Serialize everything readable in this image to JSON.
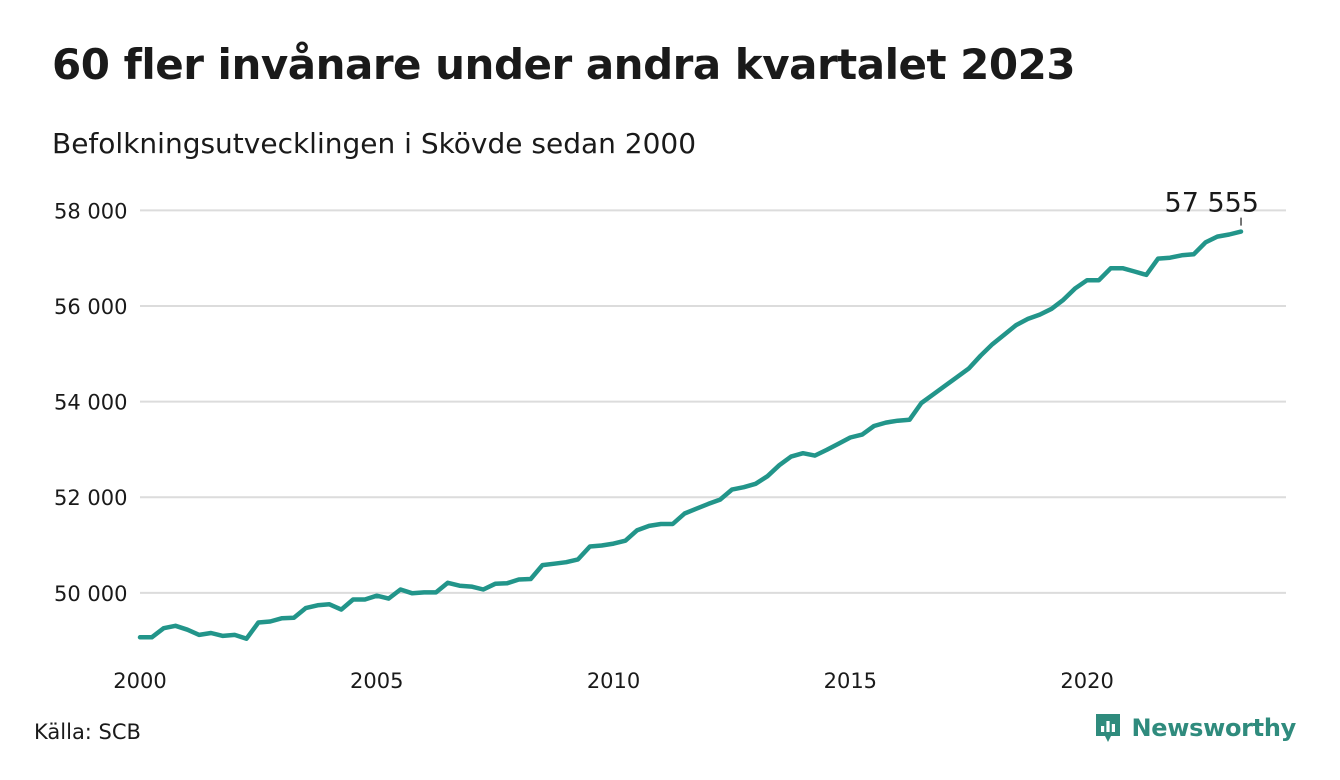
{
  "brand": {
    "name": "Newsworthy",
    "icon": "newsworthy-logo-icon",
    "color": "#2f8b7d"
  },
  "source_label": "Källa: SCB",
  "chart_data": {
    "type": "line",
    "title": "60 fler invånare under andra kvartalet 2023",
    "subtitle": "Befolkningsutvecklingen i Skövde sedan 2000",
    "xlabel": "",
    "ylabel": "",
    "xlim": [
      2000,
      2024.2
    ],
    "ylim": [
      48700,
      58300
    ],
    "grid": true,
    "legend": "none",
    "x_ticks": [
      {
        "value": 2000,
        "label": "2000"
      },
      {
        "value": 2005,
        "label": "2005"
      },
      {
        "value": 2010,
        "label": "2010"
      },
      {
        "value": 2015,
        "label": "2015"
      },
      {
        "value": 2020,
        "label": "2020"
      }
    ],
    "y_ticks": [
      {
        "value": 50000,
        "label": "50 000"
      },
      {
        "value": 52000,
        "label": "52 000"
      },
      {
        "value": 54000,
        "label": "54 000"
      },
      {
        "value": 56000,
        "label": "56 000"
      },
      {
        "value": 58000,
        "label": "58 000"
      }
    ],
    "series": [
      {
        "color": "#22958a",
        "points": [
          [
            2000.0,
            49070
          ],
          [
            2000.25,
            49070
          ],
          [
            2000.5,
            49260
          ],
          [
            2000.75,
            49310
          ],
          [
            2001.0,
            49230
          ],
          [
            2001.25,
            49120
          ],
          [
            2001.5,
            49160
          ],
          [
            2001.75,
            49100
          ],
          [
            2002.0,
            49120
          ],
          [
            2002.25,
            49040
          ],
          [
            2002.5,
            49380
          ],
          [
            2002.75,
            49400
          ],
          [
            2003.0,
            49470
          ],
          [
            2003.25,
            49480
          ],
          [
            2003.5,
            49680
          ],
          [
            2003.75,
            49740
          ],
          [
            2004.0,
            49760
          ],
          [
            2004.25,
            49650
          ],
          [
            2004.5,
            49860
          ],
          [
            2004.75,
            49860
          ],
          [
            2005.0,
            49940
          ],
          [
            2005.25,
            49880
          ],
          [
            2005.5,
            50070
          ],
          [
            2005.75,
            49990
          ],
          [
            2006.0,
            50010
          ],
          [
            2006.25,
            50010
          ],
          [
            2006.5,
            50210
          ],
          [
            2006.75,
            50150
          ],
          [
            2007.0,
            50130
          ],
          [
            2007.25,
            50070
          ],
          [
            2007.5,
            50190
          ],
          [
            2007.75,
            50200
          ],
          [
            2008.0,
            50280
          ],
          [
            2008.25,
            50290
          ],
          [
            2008.5,
            50580
          ],
          [
            2008.75,
            50610
          ],
          [
            2009.0,
            50640
          ],
          [
            2009.25,
            50700
          ],
          [
            2009.5,
            50970
          ],
          [
            2009.75,
            50990
          ],
          [
            2010.0,
            51030
          ],
          [
            2010.25,
            51090
          ],
          [
            2010.5,
            51310
          ],
          [
            2010.75,
            51400
          ],
          [
            2011.0,
            51440
          ],
          [
            2011.25,
            51440
          ],
          [
            2011.5,
            51660
          ],
          [
            2011.75,
            51760
          ],
          [
            2012.0,
            51860
          ],
          [
            2012.25,
            51950
          ],
          [
            2012.5,
            52160
          ],
          [
            2012.75,
            52210
          ],
          [
            2013.0,
            52280
          ],
          [
            2013.25,
            52440
          ],
          [
            2013.5,
            52670
          ],
          [
            2013.75,
            52850
          ],
          [
            2014.0,
            52920
          ],
          [
            2014.25,
            52870
          ],
          [
            2014.5,
            52990
          ],
          [
            2014.75,
            53120
          ],
          [
            2015.0,
            53250
          ],
          [
            2015.25,
            53310
          ],
          [
            2015.5,
            53490
          ],
          [
            2015.75,
            53560
          ],
          [
            2016.0,
            53600
          ],
          [
            2016.25,
            53620
          ],
          [
            2016.5,
            53970
          ],
          [
            2016.75,
            54150
          ],
          [
            2017.0,
            54330
          ],
          [
            2017.25,
            54510
          ],
          [
            2017.5,
            54690
          ],
          [
            2017.75,
            54960
          ],
          [
            2018.0,
            55200
          ],
          [
            2018.25,
            55400
          ],
          [
            2018.5,
            55600
          ],
          [
            2018.75,
            55730
          ],
          [
            2019.0,
            55820
          ],
          [
            2019.25,
            55940
          ],
          [
            2019.5,
            56130
          ],
          [
            2019.75,
            56370
          ],
          [
            2020.0,
            56540
          ],
          [
            2020.25,
            56540
          ],
          [
            2020.5,
            56790
          ],
          [
            2020.75,
            56790
          ],
          [
            2021.0,
            56720
          ],
          [
            2021.25,
            56650
          ],
          [
            2021.5,
            56990
          ],
          [
            2021.75,
            57010
          ],
          [
            2022.0,
            57060
          ],
          [
            2022.25,
            57080
          ],
          [
            2022.5,
            57330
          ],
          [
            2022.75,
            57450
          ],
          [
            2023.0,
            57495
          ],
          [
            2023.25,
            57555
          ]
        ]
      }
    ],
    "annotation": {
      "x": 2023.25,
      "value": 57555,
      "label": "57 555"
    }
  }
}
